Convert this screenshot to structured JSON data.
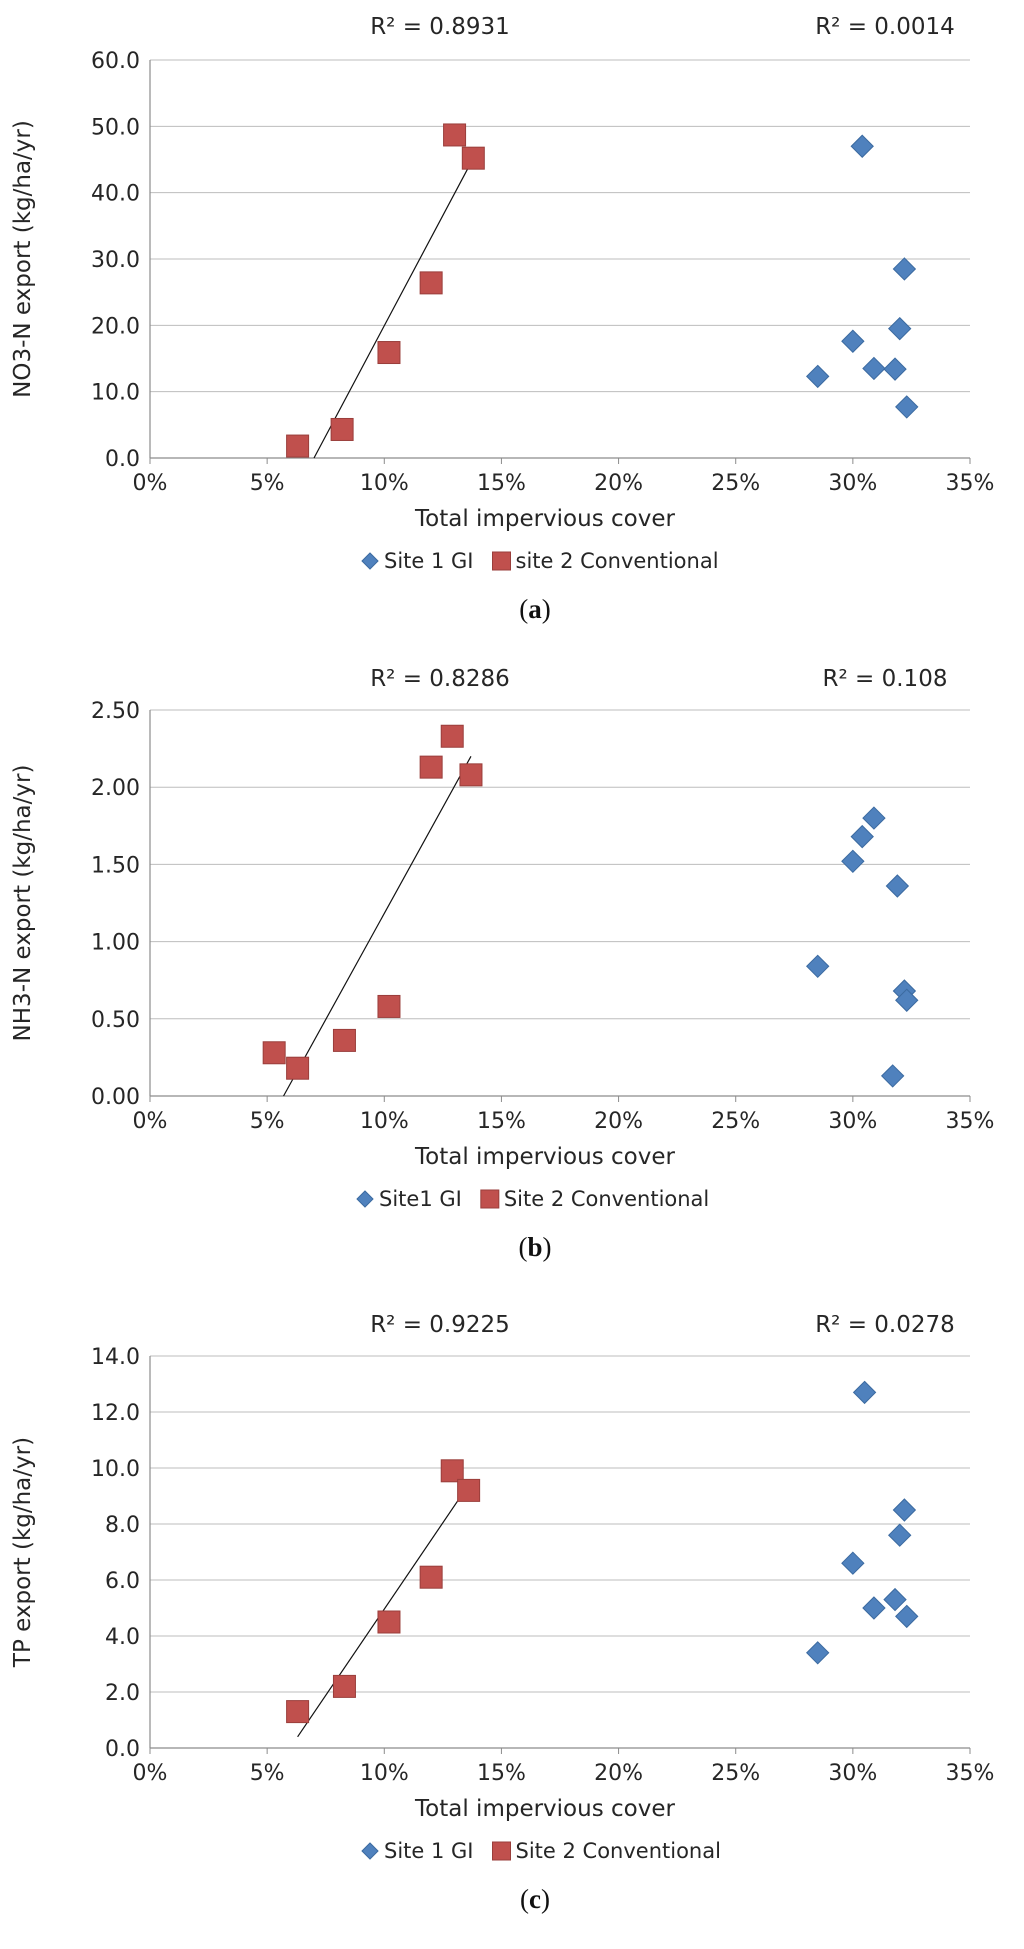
{
  "chart_data": [
    {
      "type": "scatter",
      "panel_label": "a",
      "xlabel": "Total impervious cover",
      "ylabel": "NO3-N export (kg/ha/yr)",
      "xlim": [
        0,
        0.35
      ],
      "ylim": [
        0,
        60
      ],
      "x_ticks": [
        0,
        0.05,
        0.1,
        0.15,
        0.2,
        0.25,
        0.3,
        0.35
      ],
      "x_tick_labels": [
        "0%",
        "5%",
        "10%",
        "15%",
        "20%",
        "25%",
        "30%",
        "35%"
      ],
      "y_ticks": [
        0,
        10,
        20,
        30,
        40,
        50,
        60
      ],
      "y_tick_labels": [
        "0.0",
        "10.0",
        "20.0",
        "30.0",
        "40.0",
        "50.0",
        "60.0"
      ],
      "grid": "horizontal",
      "legend_position": "bottom",
      "series": [
        {
          "name": "Site 1 GI",
          "marker": "diamond",
          "color": "#4F81BD",
          "points": [
            [
              0.285,
              12.3
            ],
            [
              0.3,
              17.6
            ],
            [
              0.304,
              47.0
            ],
            [
              0.309,
              13.5
            ],
            [
              0.318,
              13.4
            ],
            [
              0.32,
              19.5
            ],
            [
              0.322,
              28.5
            ],
            [
              0.323,
              7.7
            ]
          ],
          "r2_label": "R² = 0.0014"
        },
        {
          "name": "site 2 Conventional",
          "marker": "square",
          "color": "#C0504D",
          "points": [
            [
              0.063,
              1.8
            ],
            [
              0.082,
              4.3
            ],
            [
              0.102,
              15.9
            ],
            [
              0.12,
              26.4
            ],
            [
              0.13,
              48.7
            ],
            [
              0.138,
              45.2
            ]
          ],
          "r2_label": "R² = 0.8931",
          "trendline": [
            [
              0.07,
              0.0
            ],
            [
              0.138,
              45.2
            ]
          ]
        }
      ]
    },
    {
      "type": "scatter",
      "panel_label": "b",
      "xlabel": "Total impervious cover",
      "ylabel": "NH3-N export (kg/ha/yr)",
      "xlim": [
        0,
        0.35
      ],
      "ylim": [
        0,
        2.5
      ],
      "x_ticks": [
        0,
        0.05,
        0.1,
        0.15,
        0.2,
        0.25,
        0.3,
        0.35
      ],
      "x_tick_labels": [
        "0%",
        "5%",
        "10%",
        "15%",
        "20%",
        "25%",
        "30%",
        "35%"
      ],
      "y_ticks": [
        0,
        0.5,
        1.0,
        1.5,
        2.0,
        2.5
      ],
      "y_tick_labels": [
        "0.00",
        "0.50",
        "1.00",
        "1.50",
        "2.00",
        "2.50"
      ],
      "grid": "horizontal",
      "legend_position": "bottom",
      "series": [
        {
          "name": "Site1 GI",
          "marker": "diamond",
          "color": "#4F81BD",
          "points": [
            [
              0.285,
              0.84
            ],
            [
              0.3,
              1.52
            ],
            [
              0.304,
              1.68
            ],
            [
              0.309,
              1.8
            ],
            [
              0.317,
              0.13
            ],
            [
              0.319,
              1.36
            ],
            [
              0.322,
              0.68
            ],
            [
              0.323,
              0.62
            ]
          ],
          "r2_label": "R² = 0.108"
        },
        {
          "name": "Site 2 Conventional",
          "marker": "square",
          "color": "#C0504D",
          "points": [
            [
              0.053,
              0.28
            ],
            [
              0.063,
              0.18
            ],
            [
              0.083,
              0.36
            ],
            [
              0.102,
              0.58
            ],
            [
              0.12,
              2.13
            ],
            [
              0.129,
              2.33
            ],
            [
              0.137,
              2.08
            ]
          ],
          "r2_label": "R² = 0.8286",
          "trendline": [
            [
              0.057,
              0.0
            ],
            [
              0.137,
              2.2
            ]
          ]
        }
      ]
    },
    {
      "type": "scatter",
      "panel_label": "c",
      "xlabel": "Total impervious cover",
      "ylabel": "TP export (kg/ha/yr)",
      "xlim": [
        0,
        0.35
      ],
      "ylim": [
        0,
        14
      ],
      "x_ticks": [
        0,
        0.05,
        0.1,
        0.15,
        0.2,
        0.25,
        0.3,
        0.35
      ],
      "x_tick_labels": [
        "0%",
        "5%",
        "10%",
        "15%",
        "20%",
        "25%",
        "30%",
        "35%"
      ],
      "y_ticks": [
        0,
        2,
        4,
        6,
        8,
        10,
        12,
        14
      ],
      "y_tick_labels": [
        "0.0",
        "2.0",
        "4.0",
        "6.0",
        "8.0",
        "10.0",
        "12.0",
        "14.0"
      ],
      "grid": "horizontal",
      "legend_position": "bottom",
      "series": [
        {
          "name": "Site 1 GI",
          "marker": "diamond",
          "color": "#4F81BD",
          "points": [
            [
              0.285,
              3.4
            ],
            [
              0.3,
              6.6
            ],
            [
              0.305,
              12.7
            ],
            [
              0.309,
              5.0
            ],
            [
              0.318,
              5.3
            ],
            [
              0.32,
              7.6
            ],
            [
              0.322,
              8.5
            ],
            [
              0.323,
              4.7
            ]
          ],
          "r2_label": "R² = 0.0278"
        },
        {
          "name": "Site 2 Conventional",
          "marker": "square",
          "color": "#C0504D",
          "points": [
            [
              0.063,
              1.3
            ],
            [
              0.083,
              2.2
            ],
            [
              0.102,
              4.5
            ],
            [
              0.12,
              6.1
            ],
            [
              0.129,
              9.9
            ],
            [
              0.136,
              9.2
            ]
          ],
          "r2_label": "R² = 0.9225",
          "trendline": [
            [
              0.063,
              0.4
            ],
            [
              0.136,
              9.4
            ]
          ]
        }
      ]
    }
  ]
}
